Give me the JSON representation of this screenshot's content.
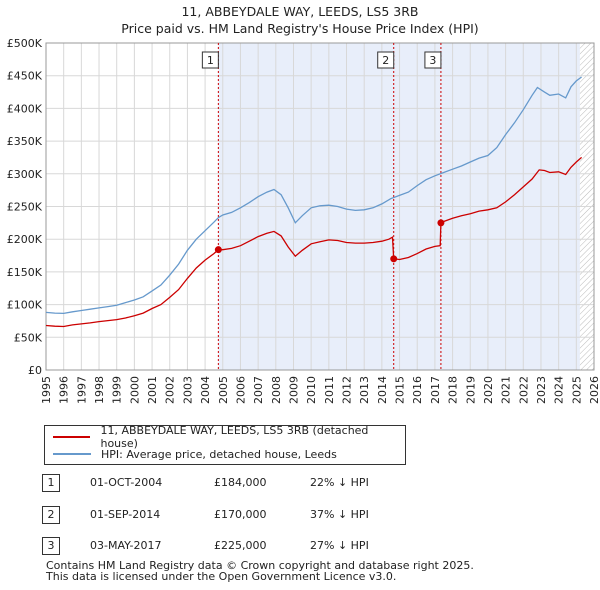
{
  "chart_data": {
    "type": "line",
    "title": "11, ABBEYDALE WAY, LEEDS, LS5 3RB",
    "subtitle": "Price paid vs. HM Land Registry's House Price Index (HPI)",
    "xlim": [
      1995,
      2026
    ],
    "ylim": [
      0,
      500000
    ],
    "yticks": [
      0,
      50000,
      100000,
      150000,
      200000,
      250000,
      300000,
      350000,
      400000,
      450000,
      500000
    ],
    "ytick_labels": [
      "£0",
      "£50K",
      "£100K",
      "£150K",
      "£200K",
      "£250K",
      "£300K",
      "£350K",
      "£400K",
      "£450K",
      "£500K"
    ],
    "xticks": [
      1995,
      1996,
      1997,
      1998,
      1999,
      2000,
      2001,
      2002,
      2003,
      2004,
      2005,
      2006,
      2007,
      2008,
      2009,
      2010,
      2011,
      2012,
      2013,
      2014,
      2015,
      2016,
      2017,
      2018,
      2019,
      2020,
      2021,
      2022,
      2023,
      2024,
      2025,
      2026
    ],
    "xtick_labels": [
      "1995",
      "1996",
      "1997",
      "1998",
      "1999",
      "2000",
      "2001",
      "2002",
      "2003",
      "2004",
      "2005",
      "2006",
      "2007",
      "2008",
      "2009",
      "2010",
      "2011",
      "2012",
      "2013",
      "2014",
      "2015",
      "2016",
      "2017",
      "2018",
      "2019",
      "2020",
      "2021",
      "2022",
      "2023",
      "2024",
      "2025",
      "2026"
    ],
    "grid": true,
    "shade_start": 2004.75,
    "hatch_start": 2025.2,
    "series": [
      {
        "name": "11, ABBEYDALE WAY, LEEDS, LS5 3RB (detached house)",
        "color": "#cc0000",
        "points": [
          [
            1995.0,
            68000
          ],
          [
            1995.5,
            67000
          ],
          [
            1996.0,
            66500
          ],
          [
            1996.5,
            69000
          ],
          [
            1997.0,
            70500
          ],
          [
            1997.5,
            72000
          ],
          [
            1998.0,
            74000
          ],
          [
            1998.5,
            75500
          ],
          [
            1999.0,
            77000
          ],
          [
            1999.5,
            79500
          ],
          [
            2000.0,
            83000
          ],
          [
            2000.5,
            87000
          ],
          [
            2001.0,
            94000
          ],
          [
            2001.5,
            100000
          ],
          [
            2002.0,
            111000
          ],
          [
            2002.5,
            123000
          ],
          [
            2003.0,
            140000
          ],
          [
            2003.5,
            156000
          ],
          [
            2004.0,
            168000
          ],
          [
            2004.5,
            178000
          ],
          [
            2004.75,
            184000
          ],
          [
            2005.0,
            184000
          ],
          [
            2005.5,
            186000
          ],
          [
            2006.0,
            190000
          ],
          [
            2006.5,
            197000
          ],
          [
            2007.0,
            204000
          ],
          [
            2007.5,
            209000
          ],
          [
            2007.9,
            212000
          ],
          [
            2008.3,
            205000
          ],
          [
            2008.7,
            188000
          ],
          [
            2009.1,
            174000
          ],
          [
            2009.5,
            183000
          ],
          [
            2010.0,
            193000
          ],
          [
            2010.5,
            196000
          ],
          [
            2011.0,
            199000
          ],
          [
            2011.5,
            198000
          ],
          [
            2012.0,
            195000
          ],
          [
            2012.5,
            194000
          ],
          [
            2013.0,
            194000
          ],
          [
            2013.5,
            195000
          ],
          [
            2014.0,
            197000
          ],
          [
            2014.4,
            200000
          ],
          [
            2014.6,
            203000
          ],
          [
            2014.67,
            170000
          ],
          [
            2015.0,
            169000
          ],
          [
            2015.5,
            172000
          ],
          [
            2016.0,
            178000
          ],
          [
            2016.5,
            185000
          ],
          [
            2017.0,
            189000
          ],
          [
            2017.3,
            190000
          ],
          [
            2017.34,
            225000
          ],
          [
            2017.5,
            227000
          ],
          [
            2018.0,
            232000
          ],
          [
            2018.5,
            236000
          ],
          [
            2019.0,
            239000
          ],
          [
            2019.5,
            243000
          ],
          [
            2020.0,
            245000
          ],
          [
            2020.5,
            248000
          ],
          [
            2021.0,
            257000
          ],
          [
            2021.5,
            268000
          ],
          [
            2022.0,
            280000
          ],
          [
            2022.5,
            292000
          ],
          [
            2022.9,
            306000
          ],
          [
            2023.2,
            305000
          ],
          [
            2023.5,
            302000
          ],
          [
            2024.0,
            303000
          ],
          [
            2024.4,
            299000
          ],
          [
            2024.7,
            310000
          ],
          [
            2025.0,
            318000
          ],
          [
            2025.3,
            325000
          ]
        ]
      },
      {
        "name": "HPI: Average price, detached house, Leeds",
        "color": "#6699cc",
        "points": [
          [
            1995.0,
            88000
          ],
          [
            1995.5,
            87000
          ],
          [
            1996.0,
            86500
          ],
          [
            1996.5,
            89000
          ],
          [
            1997.0,
            91000
          ],
          [
            1997.5,
            93000
          ],
          [
            1998.0,
            95000
          ],
          [
            1998.5,
            97000
          ],
          [
            1999.0,
            99000
          ],
          [
            1999.5,
            103000
          ],
          [
            2000.0,
            107000
          ],
          [
            2000.5,
            112000
          ],
          [
            2001.0,
            121000
          ],
          [
            2001.5,
            130000
          ],
          [
            2002.0,
            145000
          ],
          [
            2002.5,
            162000
          ],
          [
            2003.0,
            183000
          ],
          [
            2003.5,
            200000
          ],
          [
            2004.0,
            213000
          ],
          [
            2004.5,
            226000
          ],
          [
            2004.75,
            233000
          ],
          [
            2005.0,
            237000
          ],
          [
            2005.5,
            241000
          ],
          [
            2006.0,
            248000
          ],
          [
            2006.5,
            256000
          ],
          [
            2007.0,
            265000
          ],
          [
            2007.5,
            272000
          ],
          [
            2007.9,
            276000
          ],
          [
            2008.3,
            268000
          ],
          [
            2008.7,
            248000
          ],
          [
            2009.1,
            225000
          ],
          [
            2009.5,
            236000
          ],
          [
            2010.0,
            248000
          ],
          [
            2010.5,
            251000
          ],
          [
            2011.0,
            252000
          ],
          [
            2011.5,
            250000
          ],
          [
            2012.0,
            246000
          ],
          [
            2012.5,
            244000
          ],
          [
            2013.0,
            245000
          ],
          [
            2013.5,
            248000
          ],
          [
            2014.0,
            254000
          ],
          [
            2014.5,
            262000
          ],
          [
            2015.0,
            267000
          ],
          [
            2015.5,
            272000
          ],
          [
            2016.0,
            282000
          ],
          [
            2016.5,
            291000
          ],
          [
            2017.0,
            297000
          ],
          [
            2017.5,
            302000
          ],
          [
            2018.0,
            307000
          ],
          [
            2018.5,
            312000
          ],
          [
            2019.0,
            318000
          ],
          [
            2019.5,
            324000
          ],
          [
            2020.0,
            328000
          ],
          [
            2020.5,
            340000
          ],
          [
            2021.0,
            360000
          ],
          [
            2021.5,
            378000
          ],
          [
            2022.0,
            398000
          ],
          [
            2022.5,
            420000
          ],
          [
            2022.8,
            432000
          ],
          [
            2023.2,
            425000
          ],
          [
            2023.5,
            420000
          ],
          [
            2024.0,
            422000
          ],
          [
            2024.4,
            416000
          ],
          [
            2024.7,
            433000
          ],
          [
            2025.0,
            442000
          ],
          [
            2025.3,
            448000
          ]
        ]
      }
    ],
    "sales": [
      {
        "label": "1",
        "x": 2004.75,
        "price": 184000
      },
      {
        "label": "2",
        "x": 2014.67,
        "price": 170000
      },
      {
        "label": "3",
        "x": 2017.34,
        "price": 225000
      }
    ]
  },
  "legend": {
    "property_label": "11, ABBEYDALE WAY, LEEDS, LS5 3RB (detached house)",
    "hpi_label": "HPI: Average price, detached house, Leeds"
  },
  "transactions": [
    {
      "num": "1",
      "date": "01-OCT-2004",
      "price": "£184,000",
      "hpi": "22% ↓ HPI"
    },
    {
      "num": "2",
      "date": "01-SEP-2014",
      "price": "£170,000",
      "hpi": "37% ↓ HPI"
    },
    {
      "num": "3",
      "date": "03-MAY-2017",
      "price": "£225,000",
      "hpi": "27% ↓ HPI"
    }
  ],
  "footer": {
    "line1": "Contains HM Land Registry data © Crown copyright and database right 2025.",
    "line2": "This data is licensed under the Open Government Licence v3.0."
  }
}
